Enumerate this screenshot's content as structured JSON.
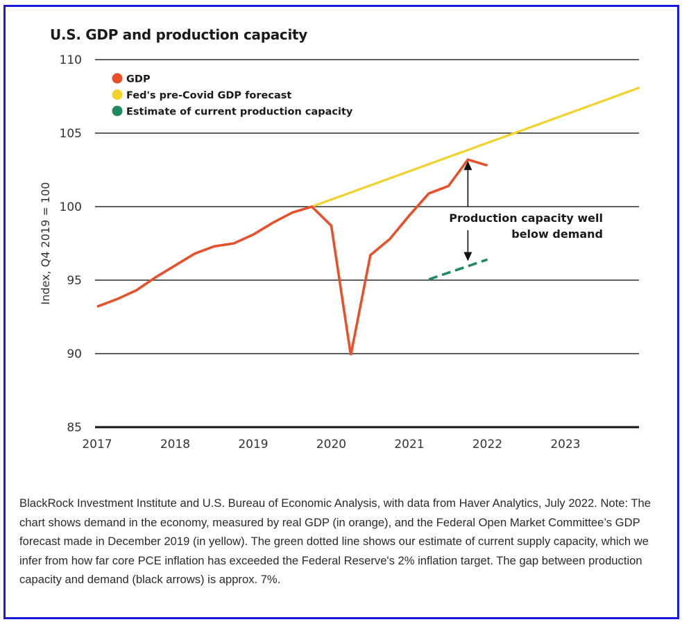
{
  "chart_data": {
    "type": "line",
    "title": "U.S. GDP and production capacity",
    "xlabel": "",
    "ylabel": "Index, Q4 2019 = 100",
    "ylim": [
      85,
      110
    ],
    "xlim": [
      2017,
      2024
    ],
    "yticks": [
      "110",
      "105",
      "100",
      "95",
      "90",
      "85"
    ],
    "ytick_values": [
      110,
      105,
      100,
      95,
      90,
      85
    ],
    "xticks": [
      "2017",
      "2018",
      "2019",
      "2020",
      "2021",
      "2022",
      "2023"
    ],
    "xtick_values": [
      2017,
      2018,
      2019,
      2020,
      2021,
      2022,
      2023
    ],
    "grid": true,
    "legend_position": "top-left",
    "series": [
      {
        "name": "GDP",
        "color": "#e8502a",
        "style": "solid",
        "x": [
          2017.0,
          2017.25,
          2017.5,
          2017.75,
          2018.0,
          2018.25,
          2018.5,
          2018.75,
          2019.0,
          2019.25,
          2019.5,
          2019.75,
          2020.0,
          2020.25,
          2020.5,
          2020.75,
          2021.0,
          2021.25,
          2021.5,
          2021.75,
          2022.0
        ],
        "values": [
          93.2,
          93.7,
          94.3,
          95.2,
          96.0,
          96.8,
          97.3,
          97.5,
          98.1,
          98.9,
          99.6,
          100.0,
          98.7,
          89.9,
          96.7,
          97.8,
          99.4,
          100.9,
          101.4,
          103.2,
          102.8
        ]
      },
      {
        "name": "Fed's pre-Covid GDP forecast",
        "color": "#f2d22a",
        "style": "solid",
        "x": [
          2019.75,
          2023.95
        ],
        "values": [
          100.0,
          108.1
        ]
      },
      {
        "name": "Estimate of current production capacity",
        "color": "#1f8a5e",
        "style": "dashed",
        "x": [
          2021.25,
          2022.0
        ],
        "values": [
          95.05,
          96.4
        ]
      }
    ],
    "annotations": [
      {
        "text_lines": [
          "Production capacity well",
          "below demand"
        ],
        "arrows": [
          {
            "x": 2021.75,
            "from": 100.0,
            "to": 103.1,
            "direction": "up"
          },
          {
            "x": 2021.75,
            "from": 98.4,
            "to": 96.3,
            "direction": "down"
          }
        ]
      }
    ]
  },
  "caption": "BlackRock Investment Institute and U.S. Bureau of Economic Analysis, with data from Haver Analytics, July 2022. Note: The chart shows demand in the economy, measured by real GDP (in orange), and the Federal Open Market Committee’s GDP forecast made in December 2019 (in yellow). The green dotted line shows our estimate of current supply capacity, which we infer from how far core PCE inflation has exceeded the Federal Reserve's 2% inflation target. The gap between production capacity and demand (black arrows) is approx. 7%."
}
